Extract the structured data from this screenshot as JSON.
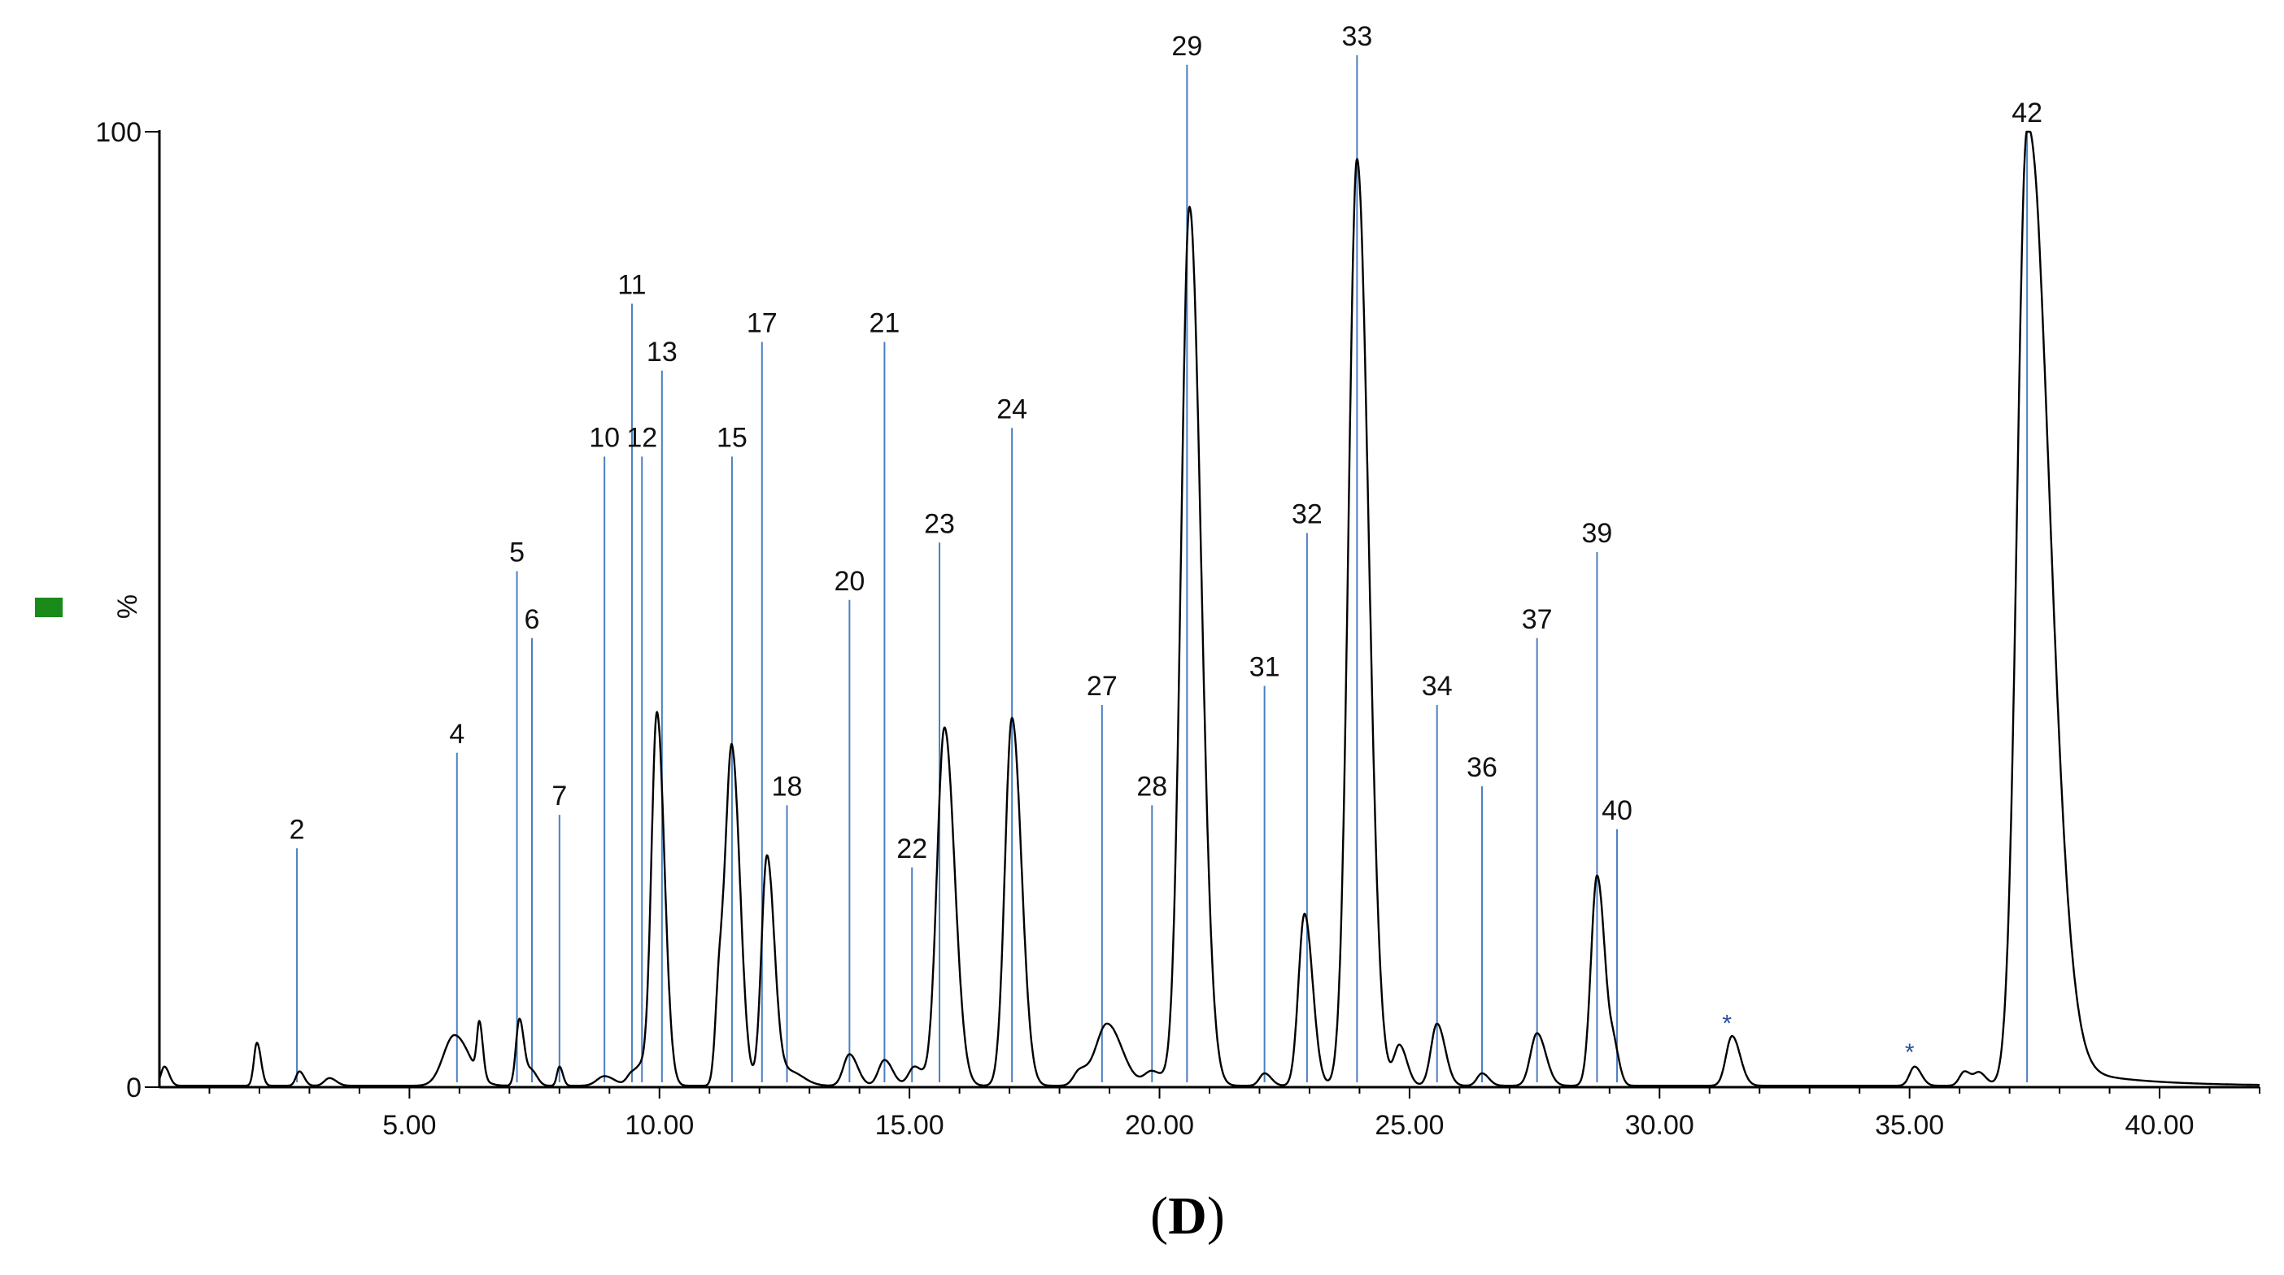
{
  "caption": {
    "open": "(",
    "letter": "D",
    "close": ")"
  },
  "legend_marker_color": "#1a8a1a",
  "chart_data": {
    "type": "line",
    "title": "",
    "xlabel": "",
    "ylabel": "%",
    "xlim": [
      0,
      42
    ],
    "ylim": [
      0,
      100
    ],
    "x_ticks": [
      5,
      10,
      15,
      20,
      25,
      30,
      35,
      40
    ],
    "x_tick_labels": [
      "5.00",
      "10.00",
      "15.00",
      "20.00",
      "25.00",
      "30.00",
      "35.00",
      "40.00"
    ],
    "y_ticks": [
      0,
      100
    ],
    "y_tick_labels": [
      "0",
      "100"
    ],
    "trace_color": "#000000",
    "marker_line_color": "#4a7fc1",
    "peaks": [
      {
        "label": "",
        "rt": 0.1,
        "height": 2,
        "width": 0.07
      },
      {
        "label": "",
        "rt": 1.95,
        "height": 4.5,
        "width": 0.06
      },
      {
        "label": "2",
        "rt": 2.8,
        "height": 1.5,
        "width": 0.07
      },
      {
        "label": "",
        "rt": 3.4,
        "height": 0.8,
        "width": 0.1
      },
      {
        "label": "4",
        "rt": 5.9,
        "height": 5.3,
        "width": 0.22
      },
      {
        "label": "",
        "rt": 6.4,
        "height": 5.5,
        "width": 0.05
      },
      {
        "label": "5",
        "rt": 7.2,
        "height": 7,
        "width": 0.07
      },
      {
        "label": "6",
        "rt": 7.45,
        "height": 1.5,
        "width": 0.08
      },
      {
        "label": "7",
        "rt": 8.0,
        "height": 2,
        "width": 0.05
      },
      {
        "label": "10",
        "rt": 8.9,
        "height": 1,
        "width": 0.15
      },
      {
        "label": "11",
        "rt": 9.45,
        "height": 1.3,
        "width": 0.1
      },
      {
        "label": "12",
        "rt": 9.65,
        "height": 1.5,
        "width": 0.1
      },
      {
        "label": "13",
        "rt": 9.95,
        "height": 39,
        "width": 0.11
      },
      {
        "label": "",
        "rt": 11.2,
        "height": 10.5,
        "width": 0.08
      },
      {
        "label": "15",
        "rt": 11.45,
        "height": 35,
        "width": 0.12
      },
      {
        "label": "17",
        "rt": 12.15,
        "height": 24,
        "width": 0.11
      },
      {
        "label": "18",
        "rt": 12.6,
        "height": 1.5,
        "width": 0.2
      },
      {
        "label": "20",
        "rt": 13.8,
        "height": 3.3,
        "width": 0.12
      },
      {
        "label": "21",
        "rt": 14.5,
        "height": 2.7,
        "width": 0.12
      },
      {
        "label": "22",
        "rt": 15.1,
        "height": 2,
        "width": 0.12
      },
      {
        "label": "23",
        "rt": 15.7,
        "height": 37.5,
        "width": 0.15
      },
      {
        "label": "24",
        "rt": 17.05,
        "height": 38.5,
        "width": 0.14
      },
      {
        "label": "",
        "rt": 18.4,
        "height": 1.5,
        "width": 0.12
      },
      {
        "label": "27",
        "rt": 18.95,
        "height": 6.5,
        "width": 0.22
      },
      {
        "label": "28",
        "rt": 19.85,
        "height": 1.5,
        "width": 0.15
      },
      {
        "label": "29",
        "rt": 20.6,
        "height": 92,
        "width": 0.17
      },
      {
        "label": "31",
        "rt": 22.1,
        "height": 1.3,
        "width": 0.1
      },
      {
        "label": "32",
        "rt": 22.9,
        "height": 18,
        "width": 0.12
      },
      {
        "label": "33",
        "rt": 23.95,
        "height": 97,
        "width": 0.17
      },
      {
        "label": "",
        "rt": 24.8,
        "height": 4.2,
        "width": 0.11
      },
      {
        "label": "34",
        "rt": 25.55,
        "height": 6.5,
        "width": 0.12
      },
      {
        "label": "36",
        "rt": 26.45,
        "height": 1.3,
        "width": 0.1
      },
      {
        "label": "37",
        "rt": 27.55,
        "height": 5.5,
        "width": 0.13
      },
      {
        "label": "39",
        "rt": 28.75,
        "height": 22,
        "width": 0.12
      },
      {
        "label": "40",
        "rt": 29.1,
        "height": 3,
        "width": 0.08
      },
      {
        "label": "*",
        "rt": 31.45,
        "height": 5.2,
        "width": 0.12
      },
      {
        "label": "*",
        "rt": 35.1,
        "height": 2,
        "width": 0.1
      },
      {
        "label": "",
        "rt": 36.1,
        "height": 1.5,
        "width": 0.1
      },
      {
        "label": "",
        "rt": 36.4,
        "height": 1.3,
        "width": 0.1
      },
      {
        "label": "42",
        "rt": 37.35,
        "height": 100,
        "width": 0.2
      }
    ],
    "labels": [
      {
        "text": "2",
        "rt": 2.75,
        "label_height": 25
      },
      {
        "text": "4",
        "rt": 5.95,
        "label_height": 35
      },
      {
        "text": "5",
        "rt": 7.15,
        "label_height": 54
      },
      {
        "text": "6",
        "rt": 7.45,
        "label_height": 47
      },
      {
        "text": "7",
        "rt": 8.0,
        "label_height": 28.5
      },
      {
        "text": "10",
        "rt": 8.9,
        "label_height": 66
      },
      {
        "text": "11",
        "rt": 9.45,
        "label_height": 82
      },
      {
        "text": "12",
        "rt": 9.65,
        "label_height": 66
      },
      {
        "text": "13",
        "rt": 10.05,
        "label_height": 75
      },
      {
        "text": "15",
        "rt": 11.45,
        "label_height": 66
      },
      {
        "text": "17",
        "rt": 12.05,
        "label_height": 78
      },
      {
        "text": "18",
        "rt": 12.55,
        "label_height": 29.5
      },
      {
        "text": "20",
        "rt": 13.8,
        "label_height": 51
      },
      {
        "text": "21",
        "rt": 14.5,
        "label_height": 78
      },
      {
        "text": "22",
        "rt": 15.05,
        "label_height": 23
      },
      {
        "text": "23",
        "rt": 15.6,
        "label_height": 57
      },
      {
        "text": "24",
        "rt": 17.05,
        "label_height": 69
      },
      {
        "text": "27",
        "rt": 18.85,
        "label_height": 40
      },
      {
        "text": "28",
        "rt": 19.85,
        "label_height": 29.5
      },
      {
        "text": "29",
        "rt": 20.55,
        "label_height": 107
      },
      {
        "text": "31",
        "rt": 22.1,
        "label_height": 42
      },
      {
        "text": "32",
        "rt": 22.95,
        "label_height": 58
      },
      {
        "text": "33",
        "rt": 23.95,
        "label_height": 108
      },
      {
        "text": "34",
        "rt": 25.55,
        "label_height": 40
      },
      {
        "text": "36",
        "rt": 26.45,
        "label_height": 31.5
      },
      {
        "text": "37",
        "rt": 27.55,
        "label_height": 47
      },
      {
        "text": "39",
        "rt": 28.75,
        "label_height": 56
      },
      {
        "text": "40",
        "rt": 29.15,
        "label_height": 27
      },
      {
        "text": "42",
        "rt": 37.35,
        "label_height": 100
      }
    ],
    "markers": [
      {
        "text": "*",
        "rt": 31.35,
        "label_height": 6.5
      },
      {
        "text": "*",
        "rt": 35.0,
        "label_height": 3.5
      }
    ]
  }
}
